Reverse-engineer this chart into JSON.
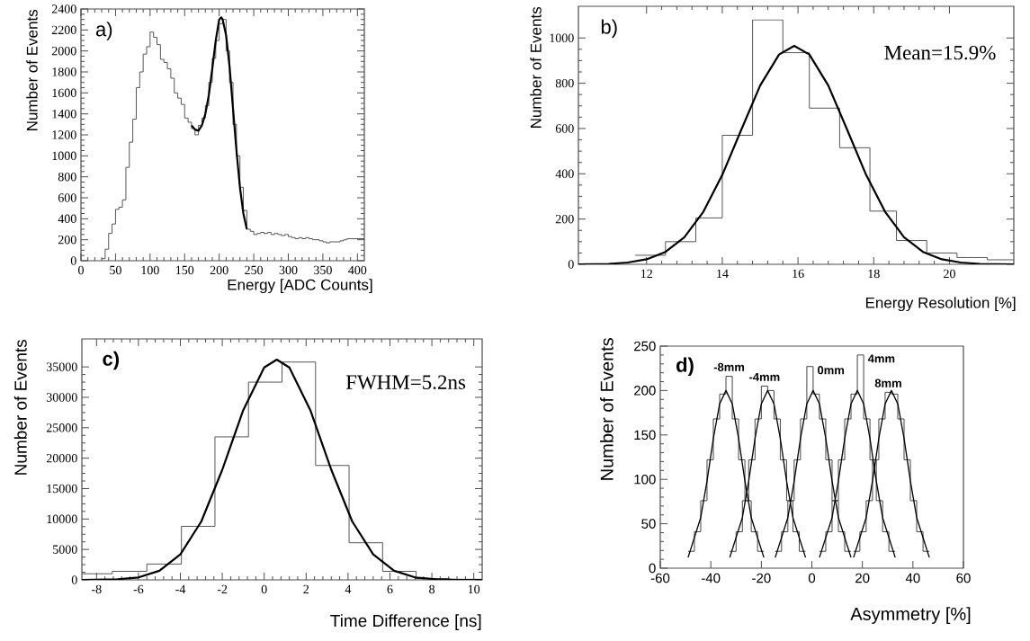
{
  "chart_data": [
    {
      "type": "step",
      "xlabel": "Energy [ADC Counts]",
      "ylabel": "Number of Events",
      "annotations": [
        "a)"
      ],
      "xlim": [
        0,
        410
      ],
      "ylim": [
        0,
        2400
      ],
      "xticks": [
        0,
        50,
        100,
        150,
        200,
        250,
        300,
        350,
        400
      ],
      "yticks": [
        0,
        200,
        400,
        600,
        800,
        1000,
        1200,
        1400,
        1600,
        1800,
        2000,
        2200,
        2400
      ],
      "series": [
        {
          "color": "#555555",
          "x": [
            30,
            35,
            40,
            45,
            50,
            55,
            60,
            65,
            70,
            75,
            80,
            85,
            90,
            95,
            100,
            105,
            110,
            115,
            120,
            125,
            130,
            135,
            140,
            145,
            150,
            155,
            160,
            165,
            170,
            175,
            180,
            185,
            190,
            195,
            200,
            205,
            210,
            215,
            220,
            225,
            230,
            235,
            240,
            245,
            250,
            255,
            260,
            265,
            270,
            275,
            280,
            285,
            290,
            295,
            300,
            305,
            310,
            315,
            320,
            325,
            330,
            335,
            340,
            345,
            350,
            355,
            360,
            365,
            370,
            375,
            380,
            385,
            390,
            395,
            400,
            405,
            410
          ],
          "values": [
            20,
            110,
            260,
            350,
            490,
            510,
            580,
            890,
            1130,
            1350,
            1650,
            1800,
            1970,
            2040,
            2180,
            2130,
            2060,
            1920,
            1890,
            1830,
            1740,
            1600,
            1550,
            1490,
            1360,
            1320,
            1260,
            1200,
            1290,
            1360,
            1480,
            1700,
            1930,
            2100,
            2260,
            2300,
            2000,
            1700,
            1300,
            1000,
            700,
            480,
            300,
            280,
            250,
            260,
            270,
            260,
            270,
            250,
            260,
            250,
            240,
            250,
            230,
            220,
            210,
            220,
            210,
            220,
            210,
            200,
            200,
            190,
            180,
            170,
            180,
            180,
            180,
            190,
            200,
            210,
            210,
            210,
            210,
            210,
            210
          ]
        },
        {
          "type": "line",
          "color": "#000000",
          "x": [
            160,
            165,
            170,
            175,
            180,
            185,
            190,
            195,
            200,
            203,
            205,
            210,
            215,
            220,
            225,
            230,
            235,
            240
          ],
          "values": [
            1290,
            1250,
            1240,
            1290,
            1400,
            1580,
            1830,
            2100,
            2300,
            2320,
            2300,
            2150,
            1850,
            1450,
            1050,
            700,
            450,
            300
          ]
        }
      ]
    },
    {
      "type": "step",
      "xlabel": "Energy Resolution [%]",
      "ylabel": "Number of Events",
      "annotations": [
        "b)",
        "Mean=15.9%"
      ],
      "xlim": [
        10.2,
        21.7
      ],
      "ylim": [
        0,
        1140
      ],
      "xticks": [
        12,
        14,
        16,
        18,
        20
      ],
      "yticks": [
        0,
        200,
        400,
        600,
        800,
        1000
      ],
      "series": [
        {
          "color": "#555555",
          "x": [
            11.7,
            12.5,
            13.3,
            14.0,
            14.8,
            15.6,
            16.3,
            17.1,
            17.9,
            18.6,
            19.4,
            20.2,
            21.0,
            21.7
          ],
          "values": [
            40,
            100,
            205,
            570,
            1080,
            935,
            690,
            515,
            235,
            105,
            50,
            30,
            20,
            20
          ]
        },
        {
          "type": "line",
          "color": "#000000",
          "x": [
            10.2,
            11,
            11.5,
            12,
            12.5,
            13,
            13.5,
            14,
            14.5,
            15,
            15.5,
            15.9,
            16.3,
            16.8,
            17.3,
            17.8,
            18.3,
            18.8,
            19.3,
            19.8,
            20.3,
            20.8,
            21.7
          ],
          "values": [
            0,
            2,
            8,
            22,
            55,
            120,
            232,
            395,
            594,
            790,
            927,
            965,
            927,
            790,
            594,
            395,
            232,
            120,
            55,
            22,
            8,
            2,
            0
          ]
        }
      ]
    },
    {
      "type": "step",
      "xlabel": "Time Difference [ns]",
      "ylabel": "Number of Events",
      "annotations": [
        "c)",
        "FWHM=5.2ns"
      ],
      "xlim": [
        -8.7,
        10.4
      ],
      "ylim": [
        0,
        39600
      ],
      "xticks": [
        -8,
        -6,
        -4,
        -2,
        0,
        2,
        4,
        6,
        8,
        10
      ],
      "yticks": [
        0,
        5000,
        10000,
        15000,
        20000,
        25000,
        30000,
        35000
      ],
      "series": [
        {
          "color": "#555555",
          "x": [
            -8.7,
            -7.25,
            -5.6,
            -3.95,
            -2.35,
            -0.75,
            0.85,
            2.45,
            4.05,
            5.65,
            7.25,
            8.85,
            10.4
          ],
          "values": [
            1000,
            1400,
            2600,
            8800,
            23500,
            32500,
            35800,
            18800,
            6100,
            1400,
            200,
            100,
            100
          ]
        },
        {
          "type": "line",
          "color": "#000000",
          "x": [
            -8.7,
            -7,
            -6,
            -5,
            -4,
            -3,
            -2,
            -1,
            0,
            0.6,
            1.2,
            2.2,
            3.2,
            4.2,
            5.2,
            6.2,
            7.2,
            8.2,
            9.2,
            10.4
          ],
          "values": [
            0,
            100,
            400,
            1500,
            4200,
            9600,
            18100,
            27900,
            34900,
            36200,
            34900,
            27900,
            18100,
            9600,
            4200,
            1500,
            400,
            100,
            0,
            0
          ]
        }
      ]
    },
    {
      "type": "step",
      "xlabel": "Asymmetry [%]",
      "ylabel": "Number of Events",
      "annotations": [
        "d)"
      ],
      "xlim": [
        -60,
        60
      ],
      "ylim": [
        0,
        250
      ],
      "xticks": [
        -60,
        -40,
        -20,
        0,
        20,
        40,
        60
      ],
      "yticks": [
        0,
        50,
        100,
        150,
        200,
        250
      ],
      "series": [
        {
          "name": "-8mm",
          "color": "#444444",
          "x": [
            -49,
            -46.5,
            -44,
            -41.5,
            -39,
            -36.5,
            -34,
            -31.5,
            -29,
            -26.5,
            -24,
            -21.5,
            -19
          ],
          "values": [
            19,
            41,
            76,
            122,
            168,
            196,
            216,
            168,
            122,
            76,
            41,
            19,
            19
          ]
        },
        {
          "name": "-4mm",
          "color": "#444444",
          "x": [
            -32.5,
            -30,
            -27.5,
            -25,
            -22.5,
            -20,
            -17.5,
            -15,
            -12.5,
            -10,
            -7.5,
            -5,
            -2.5
          ],
          "values": [
            19,
            41,
            76,
            122,
            168,
            205,
            200,
            168,
            122,
            76,
            41,
            19,
            19
          ]
        },
        {
          "name": "0mm",
          "color": "#444444",
          "x": [
            -14.5,
            -12,
            -9.5,
            -7,
            -4.5,
            -2,
            0.5,
            3,
            5.5,
            8,
            10.5,
            13,
            15.5
          ],
          "values": [
            19,
            41,
            76,
            122,
            168,
            227,
            196,
            168,
            122,
            76,
            41,
            19,
            19
          ]
        },
        {
          "name": "4mm",
          "color": "#444444",
          "x": [
            3,
            5.5,
            8,
            10.5,
            13,
            15.5,
            18,
            20.5,
            23,
            25.5,
            28,
            30.5,
            33
          ],
          "values": [
            19,
            41,
            76,
            122,
            168,
            196,
            240,
            168,
            122,
            76,
            41,
            19,
            19
          ]
        },
        {
          "name": "8mm",
          "color": "#444444",
          "x": [
            16.5,
            19,
            21.5,
            24,
            26.5,
            29,
            31.5,
            34,
            36.5,
            39,
            41.5,
            44,
            46.5
          ],
          "values": [
            19,
            41,
            76,
            122,
            168,
            198,
            196,
            168,
            122,
            76,
            41,
            19,
            19
          ]
        },
        {
          "type": "line",
          "color": "#000000",
          "x": [
            -49,
            -44,
            -41.5,
            -39,
            -36.5,
            -34,
            -31.5,
            -29,
            -26.5,
            -24,
            -19
          ],
          "values": [
            12,
            57,
            98,
            146,
            185,
            200,
            185,
            146,
            98,
            57,
            12
          ]
        },
        {
          "type": "line",
          "color": "#000000",
          "x": [
            -32.5,
            -27.5,
            -25,
            -22.5,
            -20,
            -17.5,
            -15,
            -12.5,
            -10,
            -7.5,
            -2.5
          ],
          "values": [
            12,
            57,
            98,
            146,
            185,
            200,
            185,
            146,
            98,
            57,
            12
          ]
        },
        {
          "type": "line",
          "color": "#000000",
          "x": [
            -14.5,
            -9.5,
            -7,
            -4.5,
            -2,
            0.5,
            3,
            5.5,
            8,
            10.5,
            15.5
          ],
          "values": [
            12,
            57,
            98,
            146,
            185,
            200,
            185,
            146,
            98,
            57,
            12
          ]
        },
        {
          "type": "line",
          "color": "#000000",
          "x": [
            3,
            8,
            10.5,
            13,
            15.5,
            18,
            20.5,
            23,
            25.5,
            28,
            33
          ],
          "values": [
            12,
            57,
            98,
            146,
            185,
            200,
            185,
            146,
            98,
            57,
            12
          ]
        },
        {
          "type": "line",
          "color": "#000000",
          "x": [
            16.5,
            21.5,
            24,
            26.5,
            29,
            31.5,
            34,
            36.5,
            39,
            41.5,
            46.5
          ],
          "values": [
            12,
            57,
            98,
            146,
            185,
            200,
            185,
            146,
            98,
            57,
            12
          ]
        }
      ]
    }
  ]
}
